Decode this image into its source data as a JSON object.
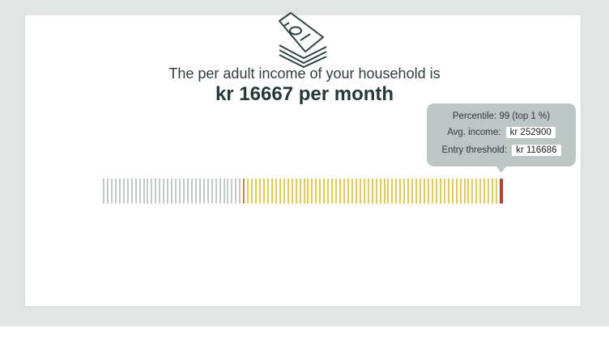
{
  "intro_text": "The per adult income of your household is",
  "headline": "kr 16667 per month",
  "tooltip": {
    "percentile_label": "Percentile:",
    "percentile_value": "99 (top 1 %)",
    "avg_income_label": "Avg. income:",
    "avg_income_value": "kr 252900",
    "entry_threshold_label": "Entry threshold:",
    "entry_threshold_value": "kr 116686"
  },
  "bar": {
    "total_ticks": 100,
    "gray_ticks": 35,
    "marker_percentile": 99,
    "colors": {
      "gray": "#c3c9c8",
      "yellow": "#e9cb4a",
      "boundary": "#d1823a",
      "marker": "#b5402f"
    }
  },
  "icons": {
    "hero": "money-stack-icon"
  }
}
